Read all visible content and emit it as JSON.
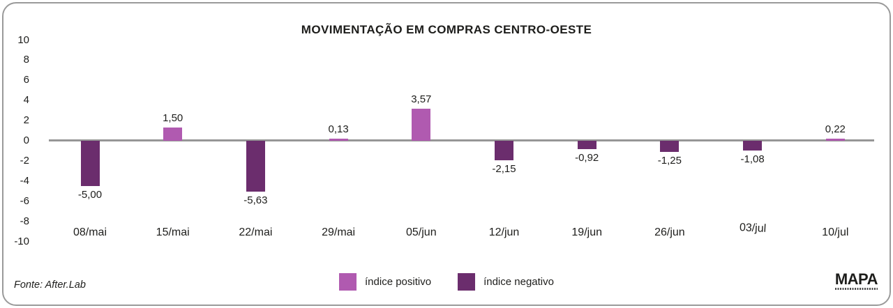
{
  "card": {
    "title": "MOVIMENTAÇÃO EM COMPRAS CENTRO-OESTE"
  },
  "chart_data": {
    "type": "bar",
    "title": "MOVIMENTAÇÃO EM COMPRAS CENTRO-OESTE",
    "categories": [
      "08/mai",
      "15/mai",
      "22/mai",
      "29/mai",
      "05/jun",
      "12/jun",
      "19/jun",
      "26/jun",
      "03/jul",
      "10/jul"
    ],
    "values": [
      -5.0,
      1.5,
      -5.63,
      0.13,
      3.57,
      -2.15,
      -0.92,
      -1.25,
      -1.08,
      0.22
    ],
    "value_labels": [
      "-5,00",
      "1,50",
      "-5,63",
      "0,13",
      "3,57",
      "-2,15",
      "-0,92",
      "-1,25",
      "-1,08",
      "0,22"
    ],
    "y_ticks": [
      "10",
      "8",
      "6",
      "4",
      "2",
      "0",
      "-2",
      "-4",
      "-6",
      "-8",
      "-10"
    ],
    "ylim": [
      -10,
      10
    ],
    "xlabel": "",
    "ylabel": "",
    "grid": false,
    "legend_position": "bottom",
    "legend": [
      {
        "label": "índice positivo",
        "color": "#b05ab0"
      },
      {
        "label": "índice negativo",
        "color": "#6b2d6d"
      }
    ]
  },
  "footer": {
    "source": "Fonte: After.Lab",
    "logo": "MAPA"
  },
  "colors": {
    "positive": "#b05ab0",
    "negative": "#6b2d6d",
    "axis_line": "#969696",
    "border": "#9a9a9a",
    "text": "#1d1d1b"
  }
}
